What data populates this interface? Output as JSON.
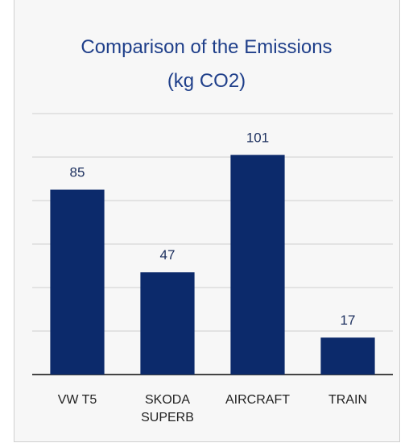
{
  "chart_data": {
    "type": "bar",
    "title": "Comparison of the Emissions (kg CO2)",
    "categories": [
      "VW T5",
      "SKODA SUPERB",
      "AIRCRAFT",
      "TRAIN"
    ],
    "values": [
      85,
      47,
      101,
      17
    ],
    "color": "#0c2a6b",
    "ylim": [
      0,
      120
    ],
    "yticks": [
      0,
      20,
      40,
      60,
      80,
      100,
      120
    ],
    "grid": true
  }
}
